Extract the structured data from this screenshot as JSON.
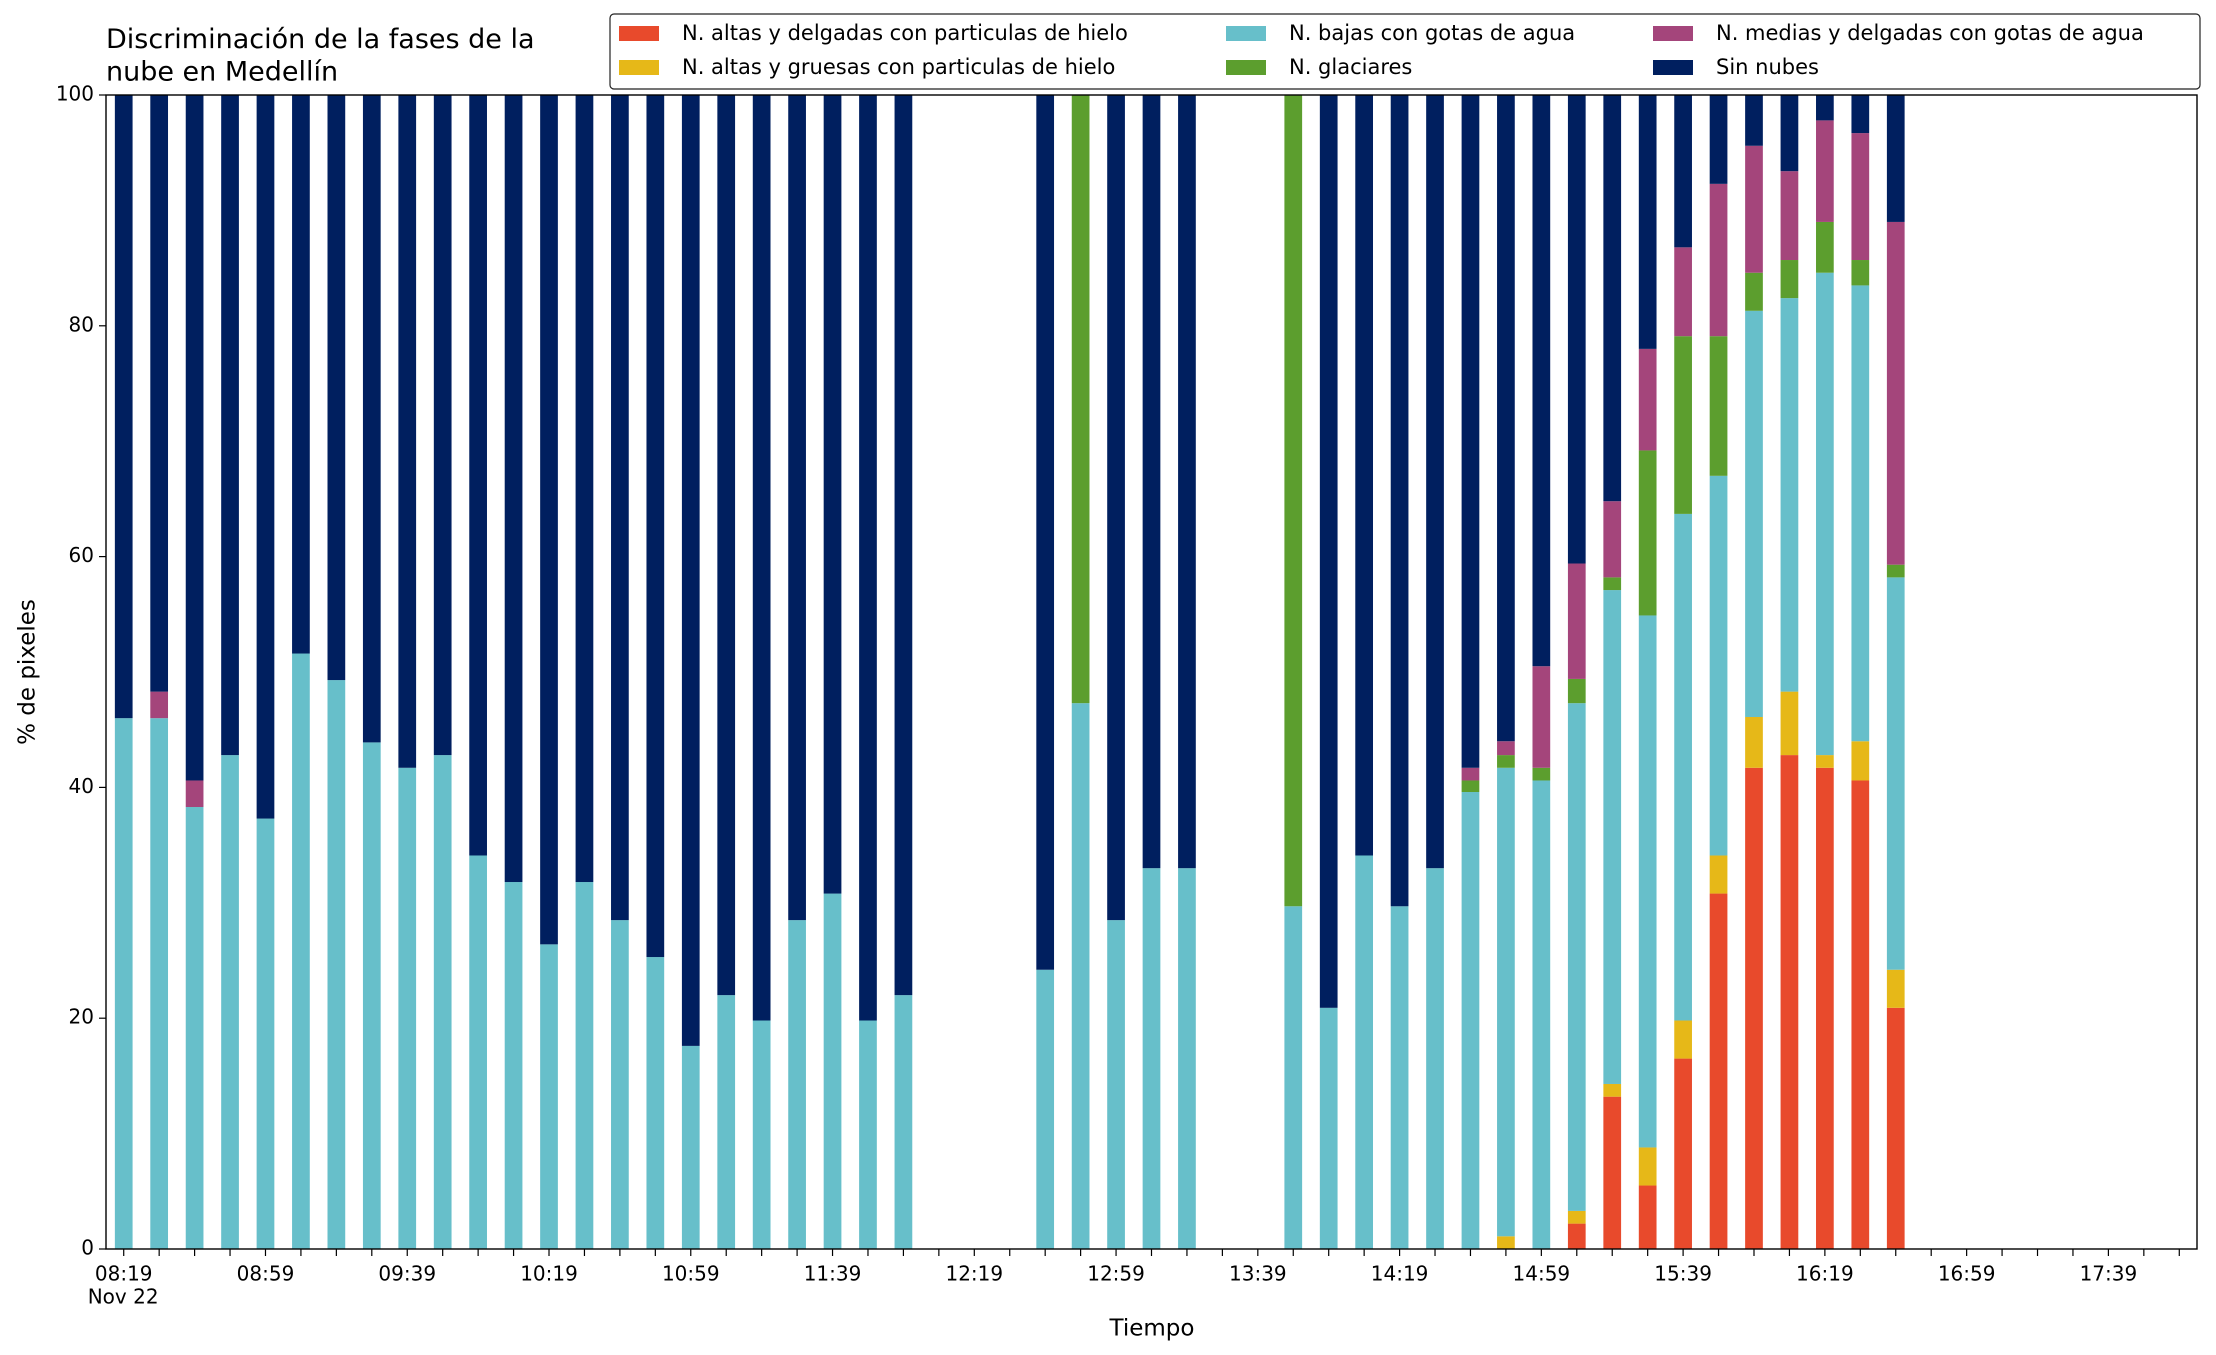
{
  "chart_data": {
    "type": "stacked_bar",
    "title": "Discriminación de la fases de la\nnube en Medellín",
    "xlabel": "Tiempo",
    "ylabel": "% de pixeles",
    "x": [
      "08:19",
      "08:29",
      "08:39",
      "08:49",
      "08:59",
      "09:09",
      "09:19",
      "09:29",
      "09:39",
      "09:49",
      "09:59",
      "10:09",
      "10:19",
      "10:29",
      "10:39",
      "10:49",
      "10:59",
      "11:09",
      "11:19",
      "11:29",
      "11:39",
      "11:49",
      "11:59",
      "12:09",
      "12:19",
      "12:29",
      "12:39",
      "12:49",
      "12:59",
      "13:09",
      "13:19",
      "13:29",
      "13:39",
      "13:49",
      "13:59",
      "14:09",
      "14:19",
      "14:29",
      "14:39",
      "14:49",
      "14:59",
      "15:09",
      "15:19",
      "15:29",
      "15:39",
      "15:49",
      "15:59",
      "16:09",
      "16:19",
      "16:29",
      "16:39"
    ],
    "xlim": [
      "08:14",
      "18:04"
    ],
    "xticks": [
      "08:19",
      "08:59",
      "09:39",
      "10:19",
      "10:59",
      "11:39",
      "12:19",
      "12:59",
      "13:39",
      "14:19",
      "14:59",
      "15:39",
      "16:19",
      "16:59",
      "17:39"
    ],
    "x_date": "Nov 22",
    "xminorticks": [
      "08:29",
      "08:39",
      "08:49",
      "09:09",
      "09:19",
      "09:29",
      "09:49",
      "09:59",
      "10:09",
      "10:29",
      "10:39",
      "10:49",
      "11:09",
      "11:19",
      "11:29",
      "11:49",
      "11:59",
      "12:09",
      "12:29",
      "12:39",
      "12:49",
      "13:09",
      "13:19",
      "13:29",
      "13:49",
      "13:59",
      "14:09",
      "14:29",
      "14:39",
      "14:49",
      "15:09",
      "15:19",
      "15:29",
      "15:49",
      "15:59",
      "16:09",
      "16:29",
      "16:39",
      "16:49",
      "17:09",
      "17:19",
      "17:29",
      "17:49",
      "17:59"
    ],
    "ylim": [
      0,
      100
    ],
    "yticks": [
      0,
      20,
      40,
      60,
      80,
      100
    ],
    "grid": false,
    "legend": "top right",
    "series": [
      {
        "name": "N. altas y delgadas con particulas de hielo",
        "color": "#e84a2c",
        "values": [
          0,
          0,
          0,
          0,
          0,
          0,
          0,
          0,
          0,
          0,
          0,
          0,
          0,
          0,
          0,
          0,
          0,
          0,
          0,
          0,
          0,
          0,
          0,
          null,
          null,
          null,
          0,
          0,
          0,
          0,
          0,
          null,
          null,
          0,
          0,
          0,
          0,
          0,
          0,
          0,
          0,
          2.2,
          13.2,
          5.5,
          16.5,
          30.8,
          41.7,
          42.8,
          41.7,
          40.6,
          20.9
        ]
      },
      {
        "name": "N. altas y gruesas con particulas de hielo",
        "color": "#e6b818",
        "values": [
          0,
          0,
          0,
          0,
          0,
          0,
          0,
          0,
          0,
          0,
          0,
          0,
          0,
          0,
          0,
          0,
          0,
          0,
          0,
          0,
          0,
          0,
          0,
          null,
          null,
          null,
          0,
          0,
          0,
          0,
          0,
          null,
          null,
          0,
          0,
          0,
          0,
          0,
          0,
          1.1,
          0,
          1.1,
          1.1,
          3.3,
          3.3,
          3.3,
          4.4,
          5.5,
          1.1,
          3.4,
          3.3
        ]
      },
      {
        "name": "N. bajas con gotas de agua",
        "color": "#67bfca",
        "values": [
          46.0,
          46.0,
          38.3,
          42.8,
          37.3,
          51.6,
          49.3,
          43.9,
          41.7,
          42.8,
          34.1,
          31.8,
          26.4,
          31.8,
          28.5,
          25.3,
          17.6,
          22.0,
          19.8,
          28.5,
          30.8,
          19.8,
          22.0,
          null,
          null,
          null,
          24.2,
          47.3,
          28.5,
          33.0,
          33.0,
          null,
          null,
          29.7,
          20.9,
          34.1,
          29.7,
          33.0,
          39.6,
          40.6,
          40.6,
          44.0,
          42.8,
          46.1,
          43.9,
          32.9,
          35.2,
          34.1,
          41.8,
          39.5,
          34.0
        ]
      },
      {
        "name": "N. glaciares",
        "color": "#5c9e2e",
        "values": [
          0,
          0,
          0,
          0,
          0,
          0,
          0,
          0,
          0,
          0,
          0,
          0,
          0,
          0,
          0,
          0,
          0,
          0,
          0,
          0,
          0,
          0,
          0,
          null,
          null,
          null,
          0,
          52.7,
          0,
          0,
          0,
          null,
          null,
          70.3,
          0,
          0,
          0,
          0,
          1.0,
          1.1,
          1.1,
          2.1,
          1.1,
          14.3,
          15.4,
          12.1,
          3.3,
          3.3,
          4.4,
          2.2,
          1.1
        ]
      },
      {
        "name": "N. medias y delgadas con gotas de agua",
        "color": "#a4457b",
        "values": [
          0,
          2.3,
          2.3,
          0,
          0,
          0,
          0,
          0,
          0,
          0,
          0,
          0,
          0,
          0,
          0,
          0,
          0,
          0,
          0,
          0,
          0,
          0,
          0,
          null,
          null,
          null,
          0,
          0,
          0,
          0,
          0,
          null,
          null,
          0,
          0,
          0,
          0,
          0,
          1.1,
          1.2,
          8.8,
          10.0,
          6.6,
          8.8,
          7.7,
          13.2,
          11.0,
          7.7,
          8.8,
          11.0,
          29.7
        ]
      },
      {
        "name": "Sin nubes",
        "color": "#001f5f",
        "values": [
          54.0,
          51.7,
          59.4,
          57.2,
          62.7,
          48.4,
          50.7,
          56.1,
          58.3,
          57.2,
          65.9,
          68.2,
          73.6,
          68.2,
          71.5,
          74.7,
          82.4,
          78.0,
          80.2,
          71.5,
          69.2,
          80.2,
          78.0,
          null,
          null,
          null,
          75.8,
          0,
          71.5,
          67.0,
          67.0,
          null,
          null,
          0,
          79.1,
          65.9,
          70.3,
          67.0,
          58.3,
          56.0,
          49.5,
          40.6,
          35.2,
          22.0,
          13.2,
          7.7,
          4.4,
          6.6,
          2.2,
          3.3,
          11.0
        ]
      }
    ]
  }
}
